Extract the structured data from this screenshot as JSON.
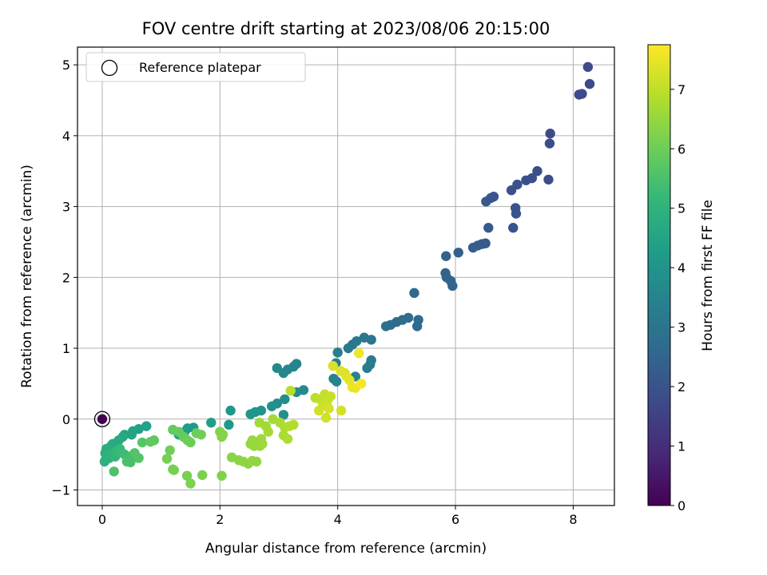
{
  "chart_data": {
    "type": "scatter",
    "title": "FOV centre drift starting at 2023/08/06 20:15:00",
    "xlabel": "Angular distance from reference (arcmin)",
    "ylabel": "Rotation from reference (arcmin)",
    "colorbar_label": "Hours from first FF file",
    "colormap": "viridis",
    "xlim": [
      -0.42,
      8.7
    ],
    "ylim": [
      -1.22,
      5.25
    ],
    "clim": [
      0,
      7.75
    ],
    "x_ticks": [
      "0",
      "2",
      "4",
      "6",
      "8"
    ],
    "y_ticks": [
      "−1",
      "0",
      "1",
      "2",
      "3",
      "4",
      "5"
    ],
    "colorbar_ticks": [
      "0",
      "1",
      "2",
      "3",
      "4",
      "5",
      "6",
      "7"
    ],
    "grid": true,
    "legend": {
      "position": "top-left",
      "label": "Reference platepar"
    },
    "reference_point": {
      "x": 0,
      "y": 0,
      "hours": 0
    },
    "points": [
      [
        8.25,
        4.97,
        1.75
      ],
      [
        8.28,
        4.73,
        1.75
      ],
      [
        8.1,
        4.58,
        1.75
      ],
      [
        8.15,
        4.59,
        1.75
      ],
      [
        7.61,
        4.03,
        1.8
      ],
      [
        7.6,
        3.89,
        1.85
      ],
      [
        7.58,
        3.38,
        1.85
      ],
      [
        7.39,
        3.5,
        1.9
      ],
      [
        7.3,
        3.4,
        1.9
      ],
      [
        7.2,
        3.37,
        1.9
      ],
      [
        7.05,
        3.31,
        1.95
      ],
      [
        6.95,
        3.23,
        1.95
      ],
      [
        7.02,
        2.98,
        2.0
      ],
      [
        7.03,
        2.9,
        2.0
      ],
      [
        6.98,
        2.7,
        2.0
      ],
      [
        6.65,
        3.14,
        2.05
      ],
      [
        6.6,
        3.12,
        2.05
      ],
      [
        6.52,
        3.07,
        2.1
      ],
      [
        6.56,
        2.7,
        2.2
      ],
      [
        6.51,
        2.48,
        2.2
      ],
      [
        6.45,
        2.47,
        2.25
      ],
      [
        6.38,
        2.45,
        2.25
      ],
      [
        6.3,
        2.42,
        2.3
      ],
      [
        6.05,
        2.35,
        2.35
      ],
      [
        5.84,
        2.3,
        2.4
      ],
      [
        5.83,
        2.06,
        2.45
      ],
      [
        5.85,
        2.0,
        2.45
      ],
      [
        5.92,
        1.95,
        2.5
      ],
      [
        5.95,
        1.88,
        2.5
      ],
      [
        5.3,
        1.78,
        2.6
      ],
      [
        5.37,
        1.4,
        2.65
      ],
      [
        5.35,
        1.31,
        2.65
      ],
      [
        5.2,
        1.43,
        2.7
      ],
      [
        5.1,
        1.4,
        2.7
      ],
      [
        5.0,
        1.37,
        2.75
      ],
      [
        4.9,
        1.33,
        2.75
      ],
      [
        4.82,
        1.31,
        2.8
      ],
      [
        4.57,
        1.12,
        3.0
      ],
      [
        4.45,
        1.15,
        3.05
      ],
      [
        4.32,
        1.1,
        3.1
      ],
      [
        4.25,
        1.05,
        3.1
      ],
      [
        4.18,
        1.0,
        3.15
      ],
      [
        4.57,
        0.83,
        3.2
      ],
      [
        4.55,
        0.77,
        3.2
      ],
      [
        4.5,
        0.72,
        3.25
      ],
      [
        4.0,
        0.94,
        3.3
      ],
      [
        3.97,
        0.79,
        3.35
      ],
      [
        4.3,
        0.6,
        3.4
      ],
      [
        3.93,
        0.57,
        3.45
      ],
      [
        3.98,
        0.53,
        3.5
      ],
      [
        3.3,
        0.78,
        3.55
      ],
      [
        3.25,
        0.74,
        3.55
      ],
      [
        3.15,
        0.7,
        3.6
      ],
      [
        3.08,
        0.65,
        3.6
      ],
      [
        2.97,
        0.72,
        3.65
      ],
      [
        3.42,
        0.41,
        3.7
      ],
      [
        3.3,
        0.38,
        3.75
      ],
      [
        3.1,
        0.28,
        3.8
      ],
      [
        2.97,
        0.22,
        3.85
      ],
      [
        2.88,
        0.18,
        3.9
      ],
      [
        3.08,
        0.06,
        3.9
      ],
      [
        2.7,
        0.12,
        4.0
      ],
      [
        2.6,
        0.1,
        4.0
      ],
      [
        2.52,
        0.07,
        4.05
      ],
      [
        2.18,
        0.12,
        4.1
      ],
      [
        2.15,
        -0.08,
        4.15
      ],
      [
        1.55,
        -0.12,
        4.2
      ],
      [
        1.45,
        -0.13,
        4.25
      ],
      [
        1.4,
        -0.18,
        4.3
      ],
      [
        1.3,
        -0.22,
        4.3
      ],
      [
        1.85,
        -0.05,
        4.35
      ],
      [
        0.75,
        -0.1,
        4.4
      ],
      [
        0.62,
        -0.14,
        4.45
      ],
      [
        0.52,
        -0.17,
        4.5
      ],
      [
        0.5,
        -0.22,
        4.5
      ],
      [
        0.38,
        -0.22,
        4.55
      ],
      [
        0.35,
        -0.25,
        4.6
      ],
      [
        0.28,
        -0.3,
        4.65
      ],
      [
        0.25,
        -0.33,
        4.7
      ],
      [
        0.18,
        -0.35,
        4.7
      ],
      [
        0.15,
        -0.38,
        4.75
      ],
      [
        0.1,
        -0.42,
        4.8
      ],
      [
        0.07,
        -0.42,
        4.8
      ],
      [
        0.05,
        -0.48,
        4.85
      ],
      [
        0.08,
        -0.52,
        4.9
      ],
      [
        0.06,
        -0.57,
        4.9
      ],
      [
        0.04,
        -0.6,
        4.95
      ],
      [
        0.12,
        -0.55,
        4.95
      ],
      [
        0.15,
        -0.5,
        5.0
      ],
      [
        0.2,
        -0.48,
        5.05
      ],
      [
        0.22,
        -0.53,
        5.1
      ],
      [
        0.25,
        -0.45,
        5.15
      ],
      [
        0.3,
        -0.42,
        5.2
      ],
      [
        0.33,
        -0.47,
        5.25
      ],
      [
        0.38,
        -0.5,
        5.3
      ],
      [
        0.45,
        -0.55,
        5.35
      ],
      [
        0.5,
        -0.52,
        5.4
      ],
      [
        0.48,
        -0.61,
        5.45
      ],
      [
        0.42,
        -0.6,
        5.5
      ],
      [
        0.2,
        -0.74,
        5.55
      ],
      [
        0.55,
        -0.48,
        5.6
      ],
      [
        0.62,
        -0.55,
        5.65
      ],
      [
        0.68,
        -0.33,
        5.7
      ],
      [
        0.88,
        -0.3,
        5.75
      ],
      [
        0.82,
        -0.32,
        5.8
      ],
      [
        1.2,
        -0.15,
        5.85
      ],
      [
        1.3,
        -0.18,
        5.9
      ],
      [
        1.38,
        -0.25,
        5.9
      ],
      [
        1.45,
        -0.3,
        5.95
      ],
      [
        1.5,
        -0.33,
        6.0
      ],
      [
        1.6,
        -0.2,
        6.0
      ],
      [
        1.68,
        -0.22,
        6.05
      ],
      [
        1.15,
        -0.44,
        6.05
      ],
      [
        1.1,
        -0.56,
        6.1
      ],
      [
        1.2,
        -0.71,
        6.1
      ],
      [
        1.22,
        -0.72,
        6.15
      ],
      [
        1.44,
        -0.8,
        6.15
      ],
      [
        1.5,
        -0.91,
        6.2
      ],
      [
        1.7,
        -0.79,
        6.2
      ],
      [
        2.03,
        -0.8,
        6.25
      ],
      [
        2.0,
        -0.18,
        6.25
      ],
      [
        2.03,
        -0.25,
        6.3
      ],
      [
        2.05,
        -0.22,
        6.3
      ],
      [
        2.2,
        -0.54,
        6.35
      ],
      [
        2.32,
        -0.58,
        6.35
      ],
      [
        2.4,
        -0.6,
        6.4
      ],
      [
        2.48,
        -0.63,
        6.4
      ],
      [
        2.55,
        -0.59,
        6.45
      ],
      [
        2.62,
        -0.6,
        6.45
      ],
      [
        2.52,
        -0.35,
        6.5
      ],
      [
        2.55,
        -0.3,
        6.5
      ],
      [
        2.58,
        -0.38,
        6.55
      ],
      [
        2.68,
        -0.38,
        6.55
      ],
      [
        2.72,
        -0.35,
        6.6
      ],
      [
        2.7,
        -0.28,
        6.6
      ],
      [
        2.67,
        -0.05,
        6.65
      ],
      [
        2.78,
        -0.1,
        6.65
      ],
      [
        2.82,
        -0.18,
        6.7
      ],
      [
        2.9,
        0.0,
        6.7
      ],
      [
        3.02,
        -0.05,
        6.75
      ],
      [
        3.08,
        -0.23,
        6.75
      ],
      [
        3.15,
        -0.28,
        6.8
      ],
      [
        3.1,
        -0.12,
        6.8
      ],
      [
        3.18,
        -0.1,
        6.85
      ],
      [
        3.25,
        -0.08,
        6.85
      ],
      [
        3.2,
        0.4,
        6.9
      ],
      [
        3.62,
        0.3,
        6.95
      ],
      [
        3.7,
        0.28,
        7.0
      ],
      [
        3.78,
        0.35,
        7.05
      ],
      [
        3.82,
        0.25,
        7.1
      ],
      [
        3.88,
        0.32,
        7.1
      ],
      [
        3.75,
        0.2,
        7.15
      ],
      [
        3.68,
        0.12,
        7.2
      ],
      [
        3.8,
        0.02,
        7.2
      ],
      [
        3.85,
        0.15,
        7.25
      ],
      [
        4.06,
        0.12,
        7.25
      ],
      [
        3.92,
        0.75,
        7.3
      ],
      [
        4.05,
        0.68,
        7.35
      ],
      [
        4.12,
        0.65,
        7.35
      ],
      [
        4.15,
        0.6,
        7.4
      ],
      [
        4.2,
        0.55,
        7.45
      ],
      [
        4.25,
        0.45,
        7.5
      ],
      [
        4.3,
        0.44,
        7.55
      ],
      [
        4.36,
        0.93,
        7.6
      ],
      [
        4.4,
        0.5,
        7.65
      ]
    ]
  }
}
